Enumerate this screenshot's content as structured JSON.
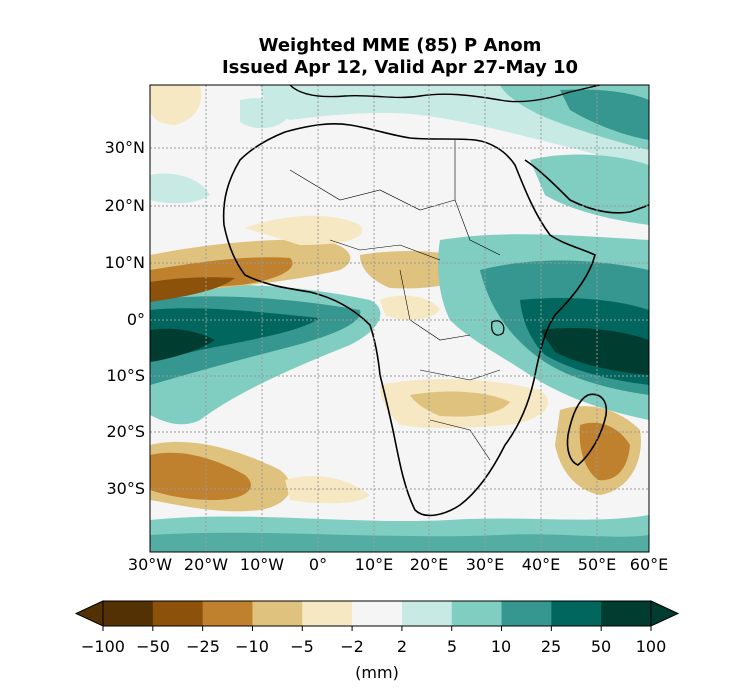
{
  "title": {
    "line1": "Weighted MME (85) P Anom",
    "line2": "Issued Apr 12, Valid Apr 27-May 10"
  },
  "map": {
    "lat_ticks": [
      "30°N",
      "20°N",
      "10°N",
      "0°",
      "10°S",
      "20°S",
      "30°S"
    ],
    "lon_ticks": [
      "30°W",
      "20°W",
      "10°W",
      "0°",
      "10°E",
      "20°E",
      "30°E",
      "40°E",
      "50°E",
      "60°E"
    ],
    "extent": {
      "lon_min": -30,
      "lon_max": 60,
      "lat_min": -40,
      "lat_max": 41
    }
  },
  "colorbar": {
    "boundaries": [
      "−100",
      "−50",
      "−25",
      "−10",
      "−5",
      "−2",
      "2",
      "5",
      "10",
      "25",
      "50",
      "100"
    ],
    "unit": "(mm)",
    "colors": [
      "#543005",
      "#8c510a",
      "#bf812d",
      "#dfc27d",
      "#f6e8c3",
      "#f5f5f5",
      "#c7eae5",
      "#80cdc1",
      "#35978f",
      "#01665e",
      "#003c30"
    ],
    "under_color": "#543005",
    "over_color": "#003c30"
  }
}
